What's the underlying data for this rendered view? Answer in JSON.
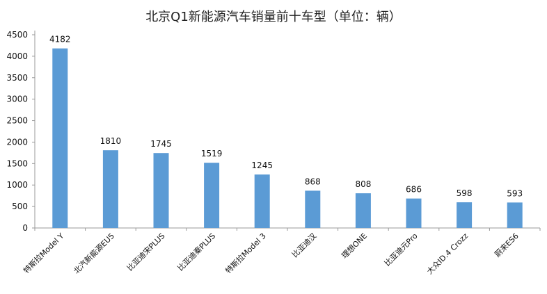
{
  "chart_data": {
    "type": "bar",
    "title": "北京Q1新能源汽车销量前十车型（单位：辆）",
    "categories": [
      "特斯拉Model Y",
      "北汽新能源EU5",
      "比亚迪宋PLUS",
      "比亚迪秦PLUS",
      "特斯拉Model 3",
      "比亚迪汉",
      "理想ONE",
      "比亚迪元Pro",
      "大众ID.4 Crozz",
      "蔚来ES6"
    ],
    "values": [
      4182,
      1810,
      1745,
      1519,
      1245,
      868,
      808,
      686,
      598,
      593
    ],
    "ylim": [
      0,
      4500
    ],
    "yticks": [
      0,
      500,
      1000,
      1500,
      2000,
      2500,
      3000,
      3500,
      4000,
      4500
    ],
    "xlabel": "",
    "ylabel": "",
    "grid": false,
    "legend": "none",
    "bar_color": "#5b9bd5"
  }
}
